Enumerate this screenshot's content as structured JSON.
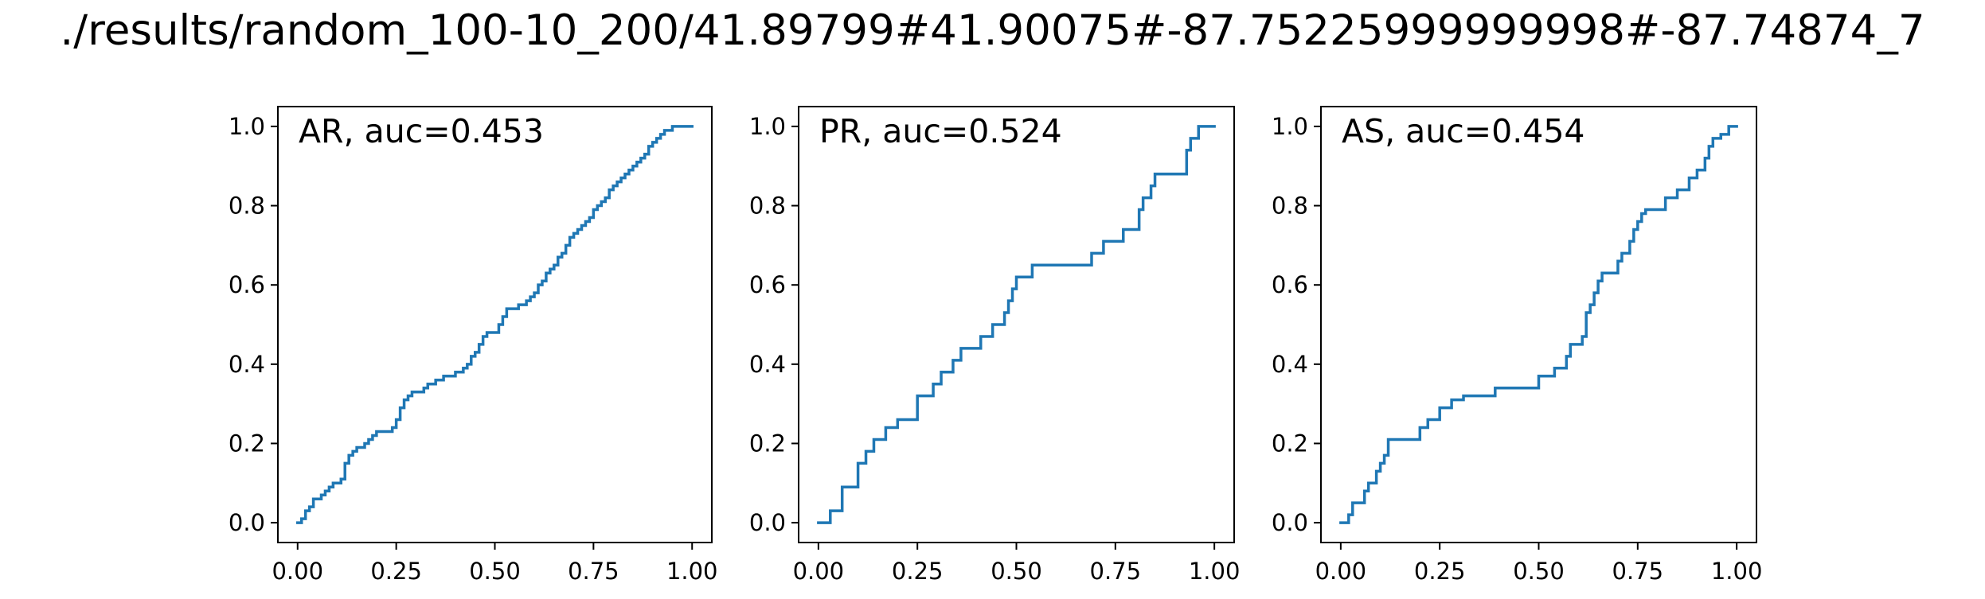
{
  "figure": {
    "title": "./results/random_100-10_200/41.89799#41.90075#-87.75225999999998#-87.74874_7"
  },
  "chart_data": [
    {
      "type": "line",
      "title": "AR, auc=0.453",
      "xlim": [
        -0.05,
        1.05
      ],
      "ylim": [
        -0.05,
        1.05
      ],
      "xticks": [
        "0.00",
        "0.25",
        "0.50",
        "0.75",
        "1.00"
      ],
      "yticks": [
        "0.0",
        "0.2",
        "0.4",
        "0.6",
        "0.8",
        "1.0"
      ],
      "grid": false,
      "color": "#1f77b4",
      "series": [
        {
          "step": true,
          "x": [
            0.0,
            0.01,
            0.02,
            0.03,
            0.04,
            0.05,
            0.06,
            0.07,
            0.08,
            0.09,
            0.1,
            0.11,
            0.12,
            0.13,
            0.14,
            0.15,
            0.16,
            0.17,
            0.18,
            0.19,
            0.2,
            0.21,
            0.22,
            0.23,
            0.24,
            0.25,
            0.26,
            0.27,
            0.28,
            0.29,
            0.3,
            0.31,
            0.32,
            0.33,
            0.34,
            0.35,
            0.36,
            0.37,
            0.38,
            0.39,
            0.4,
            0.41,
            0.42,
            0.43,
            0.44,
            0.45,
            0.46,
            0.47,
            0.48,
            0.49,
            0.5,
            0.51,
            0.52,
            0.53,
            0.54,
            0.55,
            0.56,
            0.57,
            0.58,
            0.59,
            0.6,
            0.61,
            0.62,
            0.63,
            0.64,
            0.65,
            0.66,
            0.67,
            0.68,
            0.69,
            0.7,
            0.71,
            0.72,
            0.73,
            0.74,
            0.75,
            0.76,
            0.77,
            0.78,
            0.79,
            0.8,
            0.81,
            0.82,
            0.83,
            0.84,
            0.85,
            0.86,
            0.87,
            0.88,
            0.89,
            0.9,
            0.91,
            0.92,
            0.93,
            0.94,
            0.95,
            0.96,
            0.97,
            0.98,
            0.99,
            1.0
          ],
          "y": [
            0.0,
            0.01,
            0.03,
            0.04,
            0.06,
            0.06,
            0.07,
            0.08,
            0.09,
            0.1,
            0.1,
            0.11,
            0.15,
            0.17,
            0.18,
            0.19,
            0.19,
            0.2,
            0.21,
            0.22,
            0.23,
            0.23,
            0.23,
            0.23,
            0.24,
            0.26,
            0.29,
            0.31,
            0.32,
            0.33,
            0.33,
            0.33,
            0.34,
            0.35,
            0.35,
            0.36,
            0.36,
            0.37,
            0.37,
            0.37,
            0.38,
            0.38,
            0.39,
            0.4,
            0.42,
            0.43,
            0.45,
            0.47,
            0.48,
            0.48,
            0.48,
            0.5,
            0.52,
            0.54,
            0.54,
            0.54,
            0.55,
            0.55,
            0.56,
            0.57,
            0.58,
            0.6,
            0.61,
            0.63,
            0.64,
            0.65,
            0.67,
            0.68,
            0.7,
            0.72,
            0.73,
            0.74,
            0.75,
            0.76,
            0.77,
            0.79,
            0.8,
            0.81,
            0.82,
            0.84,
            0.85,
            0.86,
            0.87,
            0.88,
            0.89,
            0.9,
            0.91,
            0.92,
            0.93,
            0.95,
            0.96,
            0.97,
            0.98,
            0.99,
            0.99,
            1.0,
            1.0,
            1.0,
            1.0,
            1.0,
            1.0
          ]
        }
      ]
    },
    {
      "type": "line",
      "title": "PR, auc=0.524",
      "xlim": [
        -0.05,
        1.05
      ],
      "ylim": [
        -0.05,
        1.05
      ],
      "xticks": [
        "0.00",
        "0.25",
        "0.50",
        "0.75",
        "1.00"
      ],
      "yticks": [
        "0.0",
        "0.2",
        "0.4",
        "0.6",
        "0.8",
        "1.0"
      ],
      "grid": false,
      "color": "#1f77b4",
      "series": [
        {
          "step": true,
          "x": [
            0.0,
            0.03,
            0.06,
            0.1,
            0.12,
            0.14,
            0.17,
            0.2,
            0.25,
            0.29,
            0.31,
            0.34,
            0.36,
            0.41,
            0.44,
            0.47,
            0.48,
            0.49,
            0.5,
            0.52,
            0.54,
            0.69,
            0.72,
            0.77,
            0.81,
            0.82,
            0.84,
            0.85,
            0.93,
            0.94,
            0.96,
            1.0
          ],
          "y": [
            0.0,
            0.03,
            0.09,
            0.15,
            0.18,
            0.21,
            0.24,
            0.26,
            0.32,
            0.35,
            0.38,
            0.41,
            0.44,
            0.47,
            0.5,
            0.53,
            0.56,
            0.59,
            0.62,
            0.62,
            0.65,
            0.68,
            0.71,
            0.74,
            0.79,
            0.82,
            0.85,
            0.88,
            0.94,
            0.97,
            1.0,
            1.0
          ]
        }
      ]
    },
    {
      "type": "line",
      "title": "AS, auc=0.454",
      "xlim": [
        -0.05,
        1.05
      ],
      "ylim": [
        -0.05,
        1.05
      ],
      "xticks": [
        "0.00",
        "0.25",
        "0.50",
        "0.75",
        "1.00"
      ],
      "yticks": [
        "0.0",
        "0.2",
        "0.4",
        "0.6",
        "0.8",
        "1.0"
      ],
      "grid": false,
      "color": "#1f77b4",
      "series": [
        {
          "step": true,
          "x": [
            0.0,
            0.02,
            0.03,
            0.06,
            0.07,
            0.09,
            0.1,
            0.11,
            0.12,
            0.16,
            0.2,
            0.22,
            0.25,
            0.28,
            0.31,
            0.39,
            0.5,
            0.54,
            0.57,
            0.58,
            0.61,
            0.62,
            0.63,
            0.64,
            0.65,
            0.66,
            0.7,
            0.71,
            0.73,
            0.74,
            0.75,
            0.76,
            0.77,
            0.79,
            0.82,
            0.85,
            0.88,
            0.9,
            0.92,
            0.93,
            0.94,
            0.96,
            0.98,
            1.0
          ],
          "y": [
            0.0,
            0.02,
            0.05,
            0.08,
            0.1,
            0.13,
            0.15,
            0.17,
            0.21,
            0.21,
            0.24,
            0.26,
            0.29,
            0.31,
            0.32,
            0.34,
            0.37,
            0.39,
            0.42,
            0.45,
            0.47,
            0.53,
            0.55,
            0.58,
            0.61,
            0.63,
            0.66,
            0.68,
            0.71,
            0.74,
            0.76,
            0.78,
            0.79,
            0.79,
            0.82,
            0.84,
            0.87,
            0.89,
            0.92,
            0.95,
            0.97,
            0.98,
            1.0,
            1.0
          ]
        }
      ]
    }
  ]
}
